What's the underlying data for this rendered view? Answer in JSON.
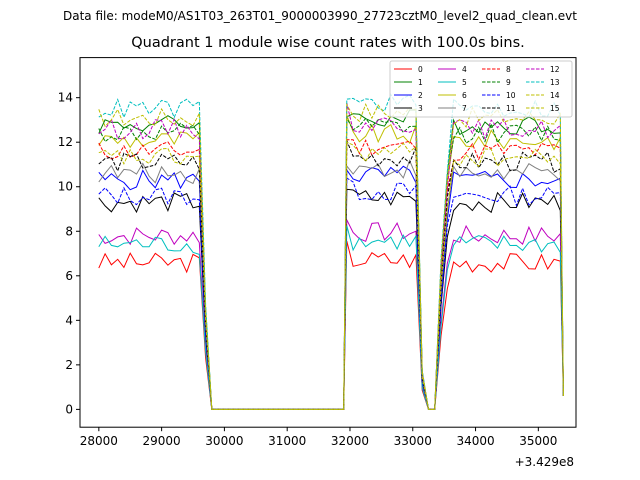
{
  "figure": {
    "suptitle": "Data file: modeM0/AS1T03_263T01_9000003990_27723cztM0_level2_quad_clean.evt",
    "title": "Quadrant 1 module wise count rates with 100.0s bins.",
    "x_offset_label": "+3.429e8"
  },
  "chart_data": {
    "type": "line",
    "title": "Quadrant 1 module wise count rates with 100.0s bins.",
    "xlabel": "",
    "ylabel": "",
    "x_offset": "+3.429e8",
    "xlim": [
      27700,
      35600
    ],
    "ylim": [
      -0.8,
      15.8
    ],
    "xticks": [
      28000,
      29000,
      30000,
      31000,
      32000,
      33000,
      34000,
      35000
    ],
    "yticks": [
      0,
      2,
      4,
      6,
      8,
      10,
      12,
      14
    ],
    "grid": false,
    "legend_placement": "top-right",
    "legend_columns": 4,
    "segments": {
      "seg1_x": [
        28000,
        28100,
        28200,
        28300,
        28400,
        28500,
        28600,
        28700,
        28800,
        28900,
        29000,
        29100,
        29200,
        29300,
        29400,
        29500,
        29600
      ],
      "drop1_x": [
        29700,
        29800
      ],
      "flat_x": [
        29800,
        31900
      ],
      "seg2_x": [
        31950,
        32050,
        32150,
        32250,
        32350,
        32450,
        32550,
        32650,
        32750,
        32850,
        32950,
        33050
      ],
      "dip_x": [
        33150,
        33250,
        33350,
        33450
      ],
      "seg3_x": [
        33550,
        33650,
        33750,
        33850,
        33950,
        34050,
        34150,
        34250,
        34350,
        34450,
        34550,
        34650,
        34750,
        34850,
        34950,
        35050,
        35150,
        35250,
        35350
      ],
      "end_x": 35400
    },
    "series": [
      {
        "name": "0",
        "color": "#ff0000",
        "dash": false,
        "level": 6.6
      },
      {
        "name": "1",
        "color": "#008000",
        "dash": false,
        "level": 12.8
      },
      {
        "name": "2",
        "color": "#0000ff",
        "dash": false,
        "level": 10.3
      },
      {
        "name": "3",
        "color": "#000000",
        "dash": false,
        "level": 9.3
      },
      {
        "name": "4",
        "color": "#bf00bf",
        "dash": false,
        "level": 7.8
      },
      {
        "name": "5",
        "color": "#00bfbf",
        "dash": false,
        "level": 7.4
      },
      {
        "name": "6",
        "color": "#bfbf00",
        "dash": false,
        "level": 12.1
      },
      {
        "name": "7",
        "color": "#808080",
        "dash": false,
        "level": 10.6
      },
      {
        "name": "8",
        "color": "#ff0000",
        "dash": true,
        "level": 11.6
      },
      {
        "name": "9",
        "color": "#008000",
        "dash": true,
        "level": 12.4
      },
      {
        "name": "10",
        "color": "#0000ff",
        "dash": true,
        "level": 9.6
      },
      {
        "name": "11",
        "color": "#000000",
        "dash": true,
        "level": 11.1
      },
      {
        "name": "12",
        "color": "#bf00bf",
        "dash": true,
        "level": 12.6
      },
      {
        "name": "13",
        "color": "#00bfbf",
        "dash": true,
        "level": 13.5
      },
      {
        "name": "14",
        "color": "#bfbf00",
        "dash": true,
        "level": 13.1
      },
      {
        "name": "15",
        "color": "#bfbf00",
        "dash": true,
        "level": 11.3
      }
    ]
  }
}
